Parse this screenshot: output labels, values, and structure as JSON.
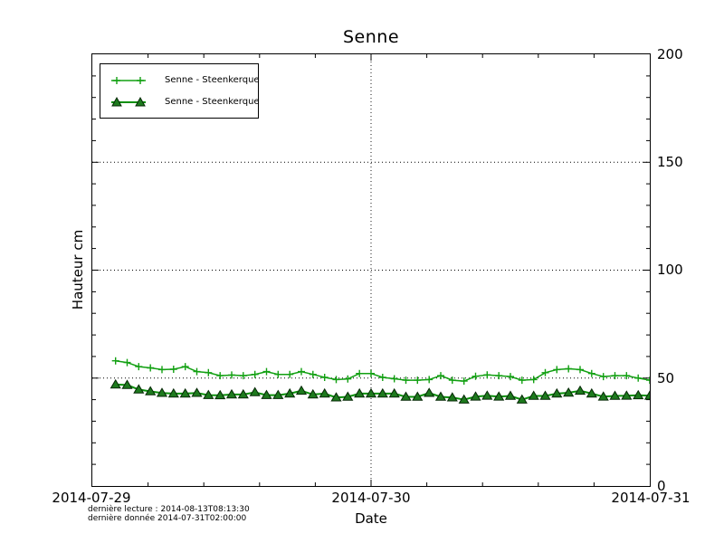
{
  "title": "Senne",
  "axes": {
    "ylabel": "Hauteur cm",
    "xlabel": "Date",
    "x_ticks": [
      "2014-07-29",
      "2014-07-30",
      "2014-07-31"
    ],
    "y_ticks": [
      "200",
      "150",
      "100",
      "50",
      "0"
    ]
  },
  "legend": {
    "items": [
      {
        "label": "Senne - Steenkerque",
        "marker": "plus"
      },
      {
        "label": "Senne - Steenkerque",
        "marker": "triangle"
      }
    ]
  },
  "footnotes": {
    "line1": "dernière lecture : 2014-08-13T08:13:30",
    "line2": "dernière donnée  2014-07-31T02:00:00"
  },
  "chart_data": {
    "type": "line",
    "title": "Senne",
    "xlabel": "Date",
    "ylabel": "Hauteur cm",
    "x_axis": {
      "start": "2014-07-29T00:00",
      "end": "2014-07-31T00:00",
      "range_hours": [
        0,
        48
      ],
      "tick_labels": [
        "2014-07-29",
        "2014-07-30",
        "2014-07-31"
      ],
      "major_tick_hours": [
        0,
        24,
        48
      ],
      "minor_tick_step_hours": 4.8
    },
    "y_axis": {
      "lim": [
        0,
        200
      ],
      "major_ticks": [
        0,
        50,
        100,
        150,
        200
      ],
      "minor_tick_step": 10
    },
    "grid": {
      "style": "dotted",
      "y_values": [
        50,
        100,
        150
      ],
      "x_hours": [
        24
      ]
    },
    "legend_position": "upper-left",
    "sample_start_hour": 2,
    "sample_step_hours": 1,
    "series": [
      {
        "name": "Senne - Steenkerque",
        "marker": "plus",
        "color": "#12a012",
        "line_width": 1.5,
        "values": [
          58.0,
          57.2,
          55.3,
          54.7,
          53.9,
          54.1,
          55.3,
          53.0,
          52.5,
          51.1,
          51.4,
          51.1,
          51.7,
          53.0,
          51.7,
          51.7,
          53.0,
          51.7,
          50.3,
          49.3,
          49.6,
          52.1,
          52.1,
          50.3,
          49.7,
          49.0,
          49.0,
          49.3,
          51.1,
          49.0,
          48.6,
          50.8,
          51.5,
          51.1,
          50.7,
          49.0,
          49.3,
          52.5,
          53.9,
          54.3,
          53.9,
          52.1,
          50.7,
          51.1,
          51.1,
          50.0,
          49.0
        ]
      },
      {
        "name": "Senne - Steenkerque",
        "marker": "triangle",
        "color": "#0a8f0a",
        "marker_fill": "#1d7a1d",
        "marker_edge": "#062806",
        "line_width": 2,
        "values": [
          47.0,
          46.8,
          44.7,
          43.8,
          43.1,
          42.8,
          42.8,
          43.1,
          42.1,
          42.0,
          42.4,
          42.4,
          43.4,
          42.1,
          42.1,
          42.8,
          44.1,
          42.4,
          42.8,
          41.0,
          41.3,
          42.8,
          42.8,
          42.8,
          42.8,
          41.3,
          41.3,
          43.1,
          41.3,
          41.0,
          40.0,
          41.4,
          41.8,
          41.4,
          41.7,
          40.0,
          41.7,
          41.7,
          42.8,
          43.2,
          44.1,
          42.8,
          41.4,
          41.7,
          41.8,
          42.0,
          41.8
        ]
      }
    ]
  }
}
